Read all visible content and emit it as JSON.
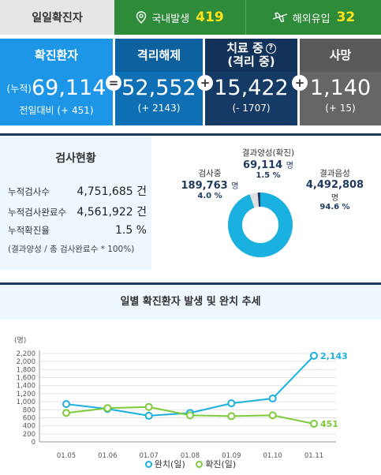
{
  "top": {
    "label": "일일확진자",
    "domestic_label": "국내발생",
    "domestic_value": "419",
    "overseas_label": "해외유입",
    "overseas_value": "32"
  },
  "summary": {
    "confirmed": {
      "title": "확진환자",
      "prefix": "(누적)",
      "value": "69,114",
      "sub": "전일대비 (+ 451)"
    },
    "released": {
      "title": "격리해제",
      "value": "52,552",
      "sub": "(+ 2143)"
    },
    "treating": {
      "title": "치료 중",
      "title2": "(격리 중)",
      "help": "?",
      "value": "15,422",
      "sub": "(- 1707)"
    },
    "deaths": {
      "title": "사망",
      "value": "1,140",
      "sub": "(+ 15)"
    },
    "op_equals": "=",
    "op_plus": "+"
  },
  "tests": {
    "title": "검사현황",
    "rows": [
      {
        "label": "누적검사수",
        "value": "4,751,685 건"
      },
      {
        "label": "누적검사완료수",
        "value": "4,561,922 건"
      },
      {
        "label": "누적확진율",
        "value": "1.5 %"
      }
    ],
    "note": "(결과양성 / 총 검사완료수 * 100%)",
    "donut": {
      "positive": {
        "label": "결과양성(확진)",
        "value": "69,114",
        "unit": "명",
        "pct": "1.5 %",
        "fraction": 0.015
      },
      "testing": {
        "label": "검사중",
        "value": "189,763",
        "unit": "명",
        "pct": "4.0 %",
        "fraction": 0.04
      },
      "negative": {
        "label": "결과음성",
        "value": "4,492,808",
        "unit": "명",
        "pct": "94.6 %",
        "fraction": 0.946
      }
    }
  },
  "chart_title": "일별 확진환자 발생 및 완치 추세",
  "colors": {
    "released": "#1ab0e0",
    "confirmed": "#7ecb3a",
    "donut_main": "#1ab0e0",
    "donut_testing": "#e0e0e0",
    "donut_pos": "#1f3a5e"
  },
  "chart_data": {
    "type": "line",
    "categories": [
      "01.05",
      "01.06",
      "01.07",
      "01.08",
      "01.09",
      "01.10",
      "01.11"
    ],
    "y_unit": "(명)",
    "ylim": [
      0,
      2200
    ],
    "yticks": [
      "0",
      "200",
      "400",
      "600",
      "800",
      "1,000",
      "1,200",
      "1,400",
      "1,600",
      "1,800",
      "2,000",
      "2,200"
    ],
    "grid": true,
    "series": [
      {
        "name": "완치(일)",
        "values": [
          940,
          820,
          650,
          720,
          960,
          1080,
          2143
        ],
        "end_label": "2,143"
      },
      {
        "name": "확진(일)",
        "values": [
          720,
          840,
          870,
          660,
          640,
          660,
          451
        ],
        "end_label": "451"
      }
    ]
  }
}
